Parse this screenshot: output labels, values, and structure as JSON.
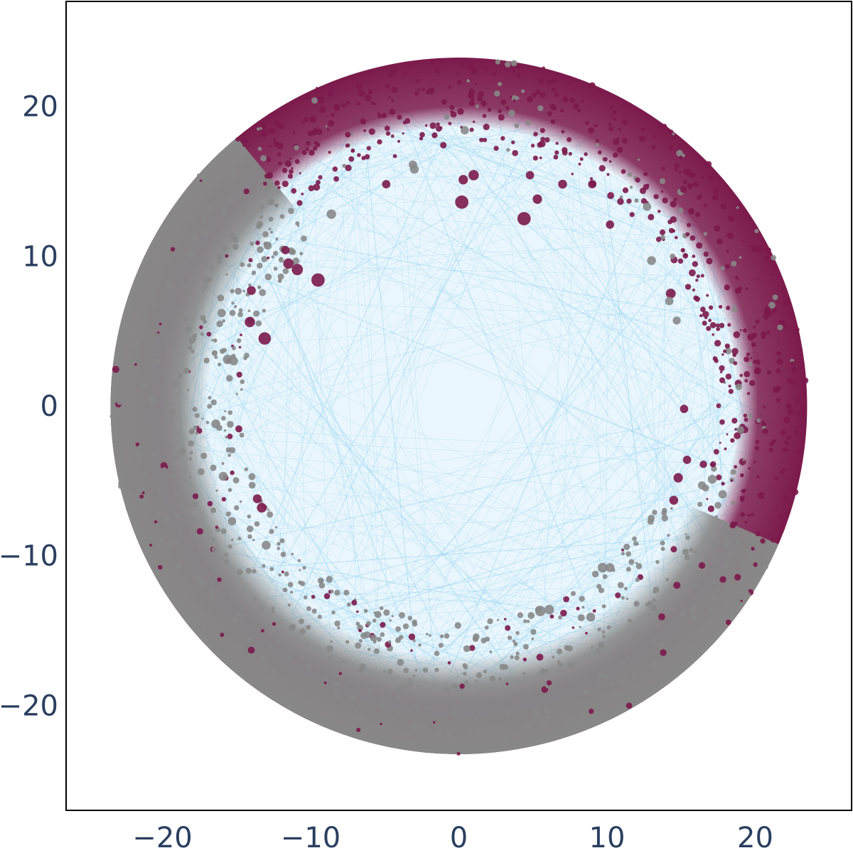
{
  "chart_data": {
    "type": "scatter",
    "title": "",
    "xlabel": "",
    "ylabel": "",
    "xlim": [
      -26.5,
      26.5
    ],
    "ylim": [
      -27,
      27
    ],
    "x_ticks": [
      {
        "value": -20,
        "label": "−20"
      },
      {
        "value": -10,
        "label": "−10"
      },
      {
        "value": 0,
        "label": "0"
      },
      {
        "value": 10,
        "label": "10"
      },
      {
        "value": 20,
        "label": "20"
      }
    ],
    "y_ticks": [
      {
        "value": 20,
        "label": "20"
      },
      {
        "value": 10,
        "label": "10"
      },
      {
        "value": 0,
        "label": "0"
      },
      {
        "value": -10,
        "label": "−10"
      },
      {
        "value": -20,
        "label": "−20"
      }
    ],
    "grid": false,
    "legend": "none",
    "disk_radius": 23.5,
    "colors": {
      "maroon_nodes": "#7b1a4b",
      "gray_nodes": "#888888",
      "edges": "#87ceeb",
      "tick_text": "#2a3f5f",
      "frame": "#000000"
    },
    "series": [
      {
        "points": [
          {
            "x": 0.2,
            "y": 13.6,
            "r": 0.45
          },
          {
            "x": 4.4,
            "y": 12.5,
            "r": 0.45
          },
          {
            "x": -9.5,
            "y": 8.4,
            "r": 0.45
          },
          {
            "x": -13.1,
            "y": 4.5,
            "r": 0.42
          },
          {
            "x": -10.9,
            "y": 9.1,
            "r": 0.38
          },
          {
            "x": -11.5,
            "y": 9.5,
            "r": 0.35
          },
          {
            "x": 1.0,
            "y": 15.4,
            "r": 0.35
          },
          {
            "x": 0.3,
            "y": 15.1,
            "r": 0.32
          },
          {
            "x": 5.3,
            "y": 13.8,
            "r": 0.32
          },
          {
            "x": -14.1,
            "y": 5.6,
            "r": 0.35
          },
          {
            "x": -14.0,
            "y": 7.7,
            "r": 0.3
          },
          {
            "x": -13.3,
            "y": -6.8,
            "r": 0.33
          },
          {
            "x": -13.6,
            "y": -6.2,
            "r": 0.3
          },
          {
            "x": 14.8,
            "y": -4.8,
            "r": 0.32
          },
          {
            "x": 14.5,
            "y": -6.3,
            "r": 0.3
          },
          {
            "x": 14.3,
            "y": 7.5,
            "r": 0.33
          },
          {
            "x": 15.2,
            "y": -0.2,
            "r": 0.28
          },
          {
            "x": 15.4,
            "y": -3.6,
            "r": 0.28
          },
          {
            "x": 7.0,
            "y": 14.8,
            "r": 0.3
          },
          {
            "x": -4.9,
            "y": 14.8,
            "r": 0.28
          },
          {
            "x": -11.7,
            "y": 10.4,
            "r": 0.28
          },
          {
            "x": 4.8,
            "y": 15.4,
            "r": 0.28
          },
          {
            "x": 9.0,
            "y": 14.8,
            "r": 0.28
          },
          {
            "x": 16.5,
            "y": -3.9,
            "r": 0.25
          },
          {
            "x": 10.2,
            "y": 12.1,
            "r": 0.28
          }
        ]
      },
      {
        "points": [
          {
            "x": -8.6,
            "y": 12.8,
            "r": 0.32
          },
          {
            "x": 13.0,
            "y": 9.7,
            "r": 0.3
          },
          {
            "x": 9.7,
            "y": -10.8,
            "r": 0.33
          },
          {
            "x": 10.2,
            "y": -10.8,
            "r": 0.3
          },
          {
            "x": 5.5,
            "y": -13.7,
            "r": 0.35
          },
          {
            "x": 6.1,
            "y": -13.6,
            "r": 0.32
          },
          {
            "x": 8.9,
            "y": -14.1,
            "r": 0.3
          },
          {
            "x": -16.4,
            "y": -1.2,
            "r": 0.3
          },
          {
            "x": -15.9,
            "y": -4.7,
            "r": 0.3
          },
          {
            "x": -15.6,
            "y": 3.1,
            "r": 0.32
          },
          {
            "x": -15.2,
            "y": 3.0,
            "r": 0.3
          },
          {
            "x": -13.0,
            "y": -9.3,
            "r": 0.3
          },
          {
            "x": -15.3,
            "y": -7.7,
            "r": 0.28
          },
          {
            "x": -3.0,
            "y": 15.8,
            "r": 0.3
          },
          {
            "x": -3.1,
            "y": 16.1,
            "r": 0.28
          },
          {
            "x": 17.1,
            "y": -4.9,
            "r": 0.3
          },
          {
            "x": 17.8,
            "y": -5.9,
            "r": 0.28
          },
          {
            "x": 14.2,
            "y": 7.0,
            "r": 0.28
          },
          {
            "x": 14.7,
            "y": 5.7,
            "r": 0.27
          },
          {
            "x": -16.0,
            "y": 6.2,
            "r": 0.28
          },
          {
            "x": 16.4,
            "y": -5.3,
            "r": 0.27
          },
          {
            "x": 19.0,
            "y": -1.6,
            "r": 0.25
          },
          {
            "x": -12.9,
            "y": 10.7,
            "r": 0.27
          },
          {
            "x": 0.4,
            "y": 18.4,
            "r": 0.28
          },
          {
            "x": 12.7,
            "y": 13.3,
            "r": 0.28
          }
        ]
      }
    ]
  }
}
